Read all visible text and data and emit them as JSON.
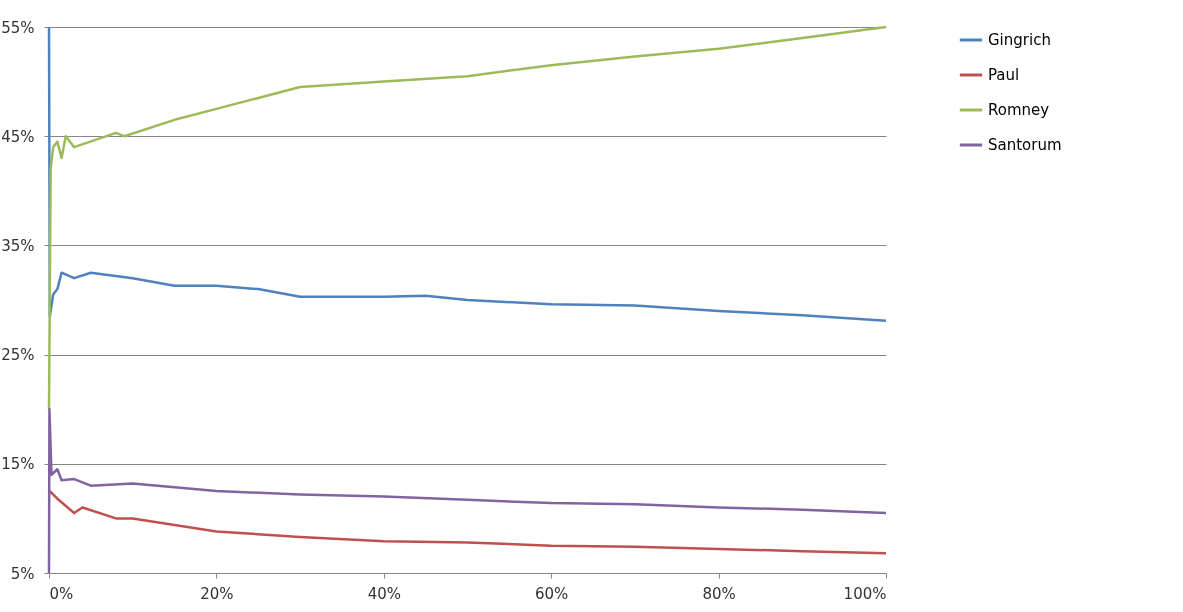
{
  "chart_data": {
    "type": "line",
    "xlim": [
      0,
      100
    ],
    "ylim": [
      5,
      55
    ],
    "xticks": [
      {
        "value": 0,
        "label": "0%"
      },
      {
        "value": 20,
        "label": "20%"
      },
      {
        "value": 40,
        "label": "40%"
      },
      {
        "value": 60,
        "label": "60%"
      },
      {
        "value": 80,
        "label": "80%"
      },
      {
        "value": 100,
        "label": "100%"
      }
    ],
    "yticks": [
      {
        "value": 5,
        "label": "5%"
      },
      {
        "value": 15,
        "label": "15%"
      },
      {
        "value": 25,
        "label": "25%"
      },
      {
        "value": 35,
        "label": "35%"
      },
      {
        "value": 45,
        "label": "45%"
      },
      {
        "value": 55,
        "label": "55%"
      }
    ],
    "grid": "y",
    "legend": "right",
    "line_style": "solid",
    "series": [
      {
        "name": "Gingrich",
        "color": "#4f81bd",
        "x": [
          0,
          0.1,
          0.5,
          1,
          1.5,
          3,
          5,
          10,
          15,
          20,
          25,
          30,
          40,
          45,
          50,
          60,
          70,
          80,
          90,
          100
        ],
        "values": [
          55,
          28.5,
          30.5,
          31,
          32.5,
          32,
          32.5,
          32,
          31.3,
          31.3,
          31,
          30.3,
          30.3,
          30.4,
          30,
          29.6,
          29.5,
          29,
          28.6,
          28.1
        ]
      },
      {
        "name": "Paul",
        "color": "#c0504d",
        "x": [
          0.1,
          1,
          3,
          4,
          8,
          10,
          20,
          30,
          40,
          50,
          60,
          70,
          80,
          90,
          100
        ],
        "values": [
          12.5,
          11.8,
          10.5,
          11,
          10,
          10,
          8.8,
          8.3,
          7.9,
          7.8,
          7.5,
          7.4,
          7.2,
          7,
          6.8
        ]
      },
      {
        "name": "Romney",
        "color": "#9bbb59",
        "x": [
          0,
          0.2,
          0.5,
          1,
          1.5,
          2,
          3,
          8,
          9,
          15,
          20,
          25,
          30,
          40,
          50,
          60,
          70,
          80,
          90,
          100
        ],
        "values": [
          20,
          42,
          44,
          44.5,
          43,
          45,
          44,
          45.3,
          45,
          46.5,
          47.5,
          48.5,
          49.5,
          50,
          50.5,
          51.5,
          52.3,
          53,
          54,
          55
        ]
      },
      {
        "name": "Santorum",
        "color": "#8064a2",
        "x": [
          0,
          0.05,
          0.3,
          1,
          1.5,
          3,
          5,
          10,
          20,
          30,
          40,
          50,
          60,
          70,
          80,
          90,
          100
        ],
        "values": [
          5,
          20,
          14,
          14.5,
          13.5,
          13.6,
          13,
          13.2,
          12.5,
          12.2,
          12,
          11.7,
          11.4,
          11.3,
          11,
          10.8,
          10.5
        ]
      }
    ]
  }
}
